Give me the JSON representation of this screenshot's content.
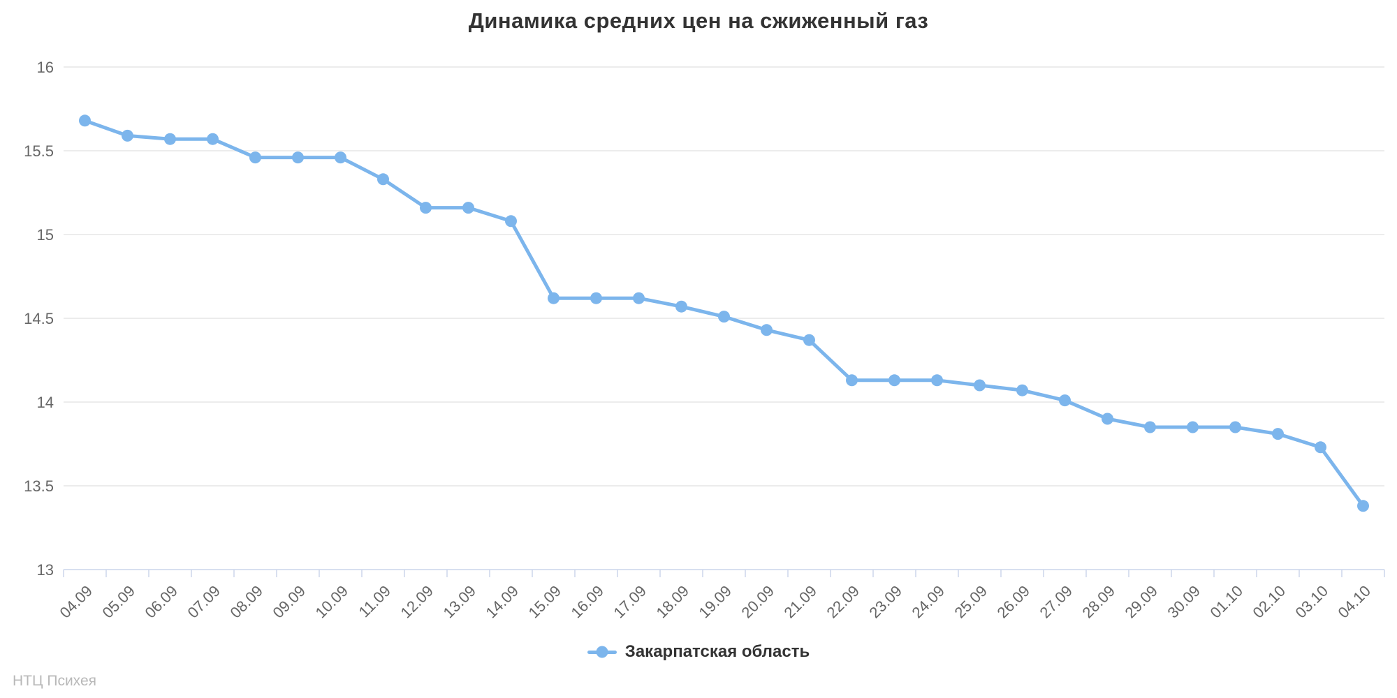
{
  "title": "Динамика средних цен на сжиженный газ",
  "watermark": "НТЦ Психея",
  "colors": {
    "series": "#7cb5ec",
    "gridline": "#e6e6e6",
    "axis_line": "#ccd6eb",
    "tick": "#ccd6eb",
    "axis_label": "#666666",
    "title": "#333333",
    "legend_text": "#333333",
    "watermark": "#b8b8b8",
    "background": "#ffffff"
  },
  "chart_data": {
    "type": "line",
    "title": "Динамика средних цен на сжиженный газ",
    "xlabel": "",
    "ylabel": "",
    "ylim": [
      13,
      16
    ],
    "yticks": [
      13,
      13.5,
      14,
      14.5,
      15,
      15.5,
      16
    ],
    "grid": true,
    "legend_position": "bottom-center",
    "categories": [
      "04.09",
      "05.09",
      "06.09",
      "07.09",
      "08.09",
      "09.09",
      "10.09",
      "11.09",
      "12.09",
      "13.09",
      "14.09",
      "15.09",
      "16.09",
      "17.09",
      "18.09",
      "19.09",
      "20.09",
      "21.09",
      "22.09",
      "23.09",
      "24.09",
      "25.09",
      "26.09",
      "27.09",
      "28.09",
      "29.09",
      "30.09",
      "01.10",
      "02.10",
      "03.10",
      "04.10"
    ],
    "series": [
      {
        "name": "Закарпатская область",
        "color": "#7cb5ec",
        "values": [
          15.68,
          15.59,
          15.57,
          15.57,
          15.46,
          15.46,
          15.46,
          15.33,
          15.16,
          15.16,
          15.08,
          14.62,
          14.62,
          14.62,
          14.57,
          14.51,
          14.43,
          14.37,
          14.13,
          14.13,
          14.13,
          14.1,
          14.07,
          14.01,
          13.9,
          13.85,
          13.85,
          13.85,
          13.81,
          13.73,
          13.38
        ]
      }
    ]
  }
}
